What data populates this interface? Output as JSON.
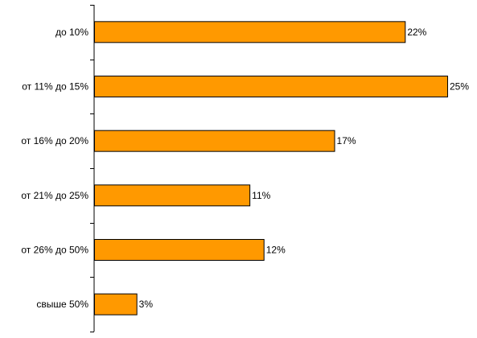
{
  "chart_data": {
    "type": "bar",
    "orientation": "horizontal",
    "categories": [
      "до 10%",
      "от 11% до 15%",
      "от 16% до 20%",
      "от 21% до 25%",
      "от 26% до 50%",
      "свыше 50%"
    ],
    "values": [
      22,
      25,
      17,
      11,
      12,
      3
    ],
    "data_labels": [
      "22%",
      "25%",
      "17%",
      "11%",
      "12%",
      "3%"
    ],
    "title": "",
    "xlabel": "",
    "ylabel": "",
    "xlim": [
      0,
      25
    ],
    "grid": false,
    "legend": "none",
    "bar_color": "#FF9900",
    "bar_edge_color": "#000000"
  }
}
